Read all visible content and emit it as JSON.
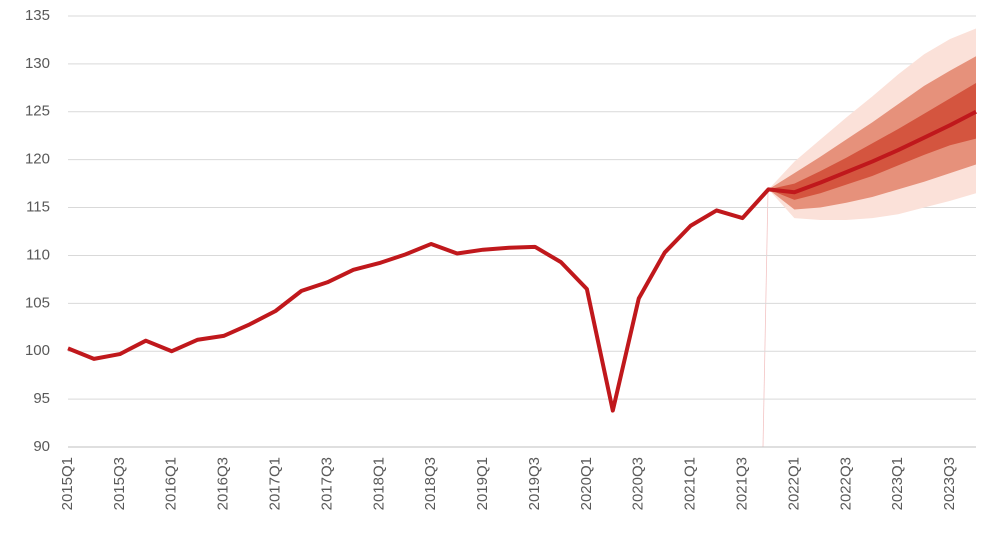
{
  "chart_data": {
    "type": "fan",
    "categories": [
      "2015Q1",
      null,
      "2015Q3",
      null,
      "2016Q1",
      null,
      "2016Q3",
      null,
      "2017Q1",
      null,
      "2017Q3",
      null,
      "2018Q1",
      null,
      "2018Q3",
      null,
      "2019Q1",
      null,
      "2019Q3",
      null,
      "2020Q1",
      null,
      "2020Q3",
      null,
      "2021Q1",
      null,
      "2021Q3",
      null,
      "2022Q1",
      null,
      "2022Q3",
      null,
      "2023Q1",
      null,
      "2023Q3",
      null
    ],
    "series": [
      {
        "color": "#c0181c",
        "values": [
          100.3,
          99.2,
          99.7,
          101.1,
          100.0,
          101.2,
          101.6,
          102.8,
          104.2,
          106.3,
          107.2,
          108.5,
          109.2,
          110.1,
          111.2,
          110.2,
          110.6,
          110.8,
          110.9,
          109.3,
          106.5,
          93.8,
          105.5,
          110.3,
          113.1,
          114.7,
          113.9,
          116.9,
          116.6,
          117.6,
          118.7,
          119.8,
          121.0,
          122.3,
          123.6,
          125.0
        ]
      }
    ],
    "fan": [
      {
        "color": "#fbe1d9",
        "lower": [
          null,
          null,
          null,
          null,
          null,
          null,
          null,
          null,
          null,
          null,
          null,
          null,
          null,
          null,
          null,
          null,
          null,
          null,
          null,
          null,
          null,
          null,
          null,
          null,
          null,
          null,
          null,
          116.9,
          113.9,
          113.7,
          113.7,
          113.9,
          114.3,
          115.0,
          115.7,
          116.5
        ],
        "upper": [
          null,
          null,
          null,
          null,
          null,
          null,
          null,
          null,
          null,
          null,
          null,
          null,
          null,
          null,
          null,
          null,
          null,
          null,
          null,
          null,
          null,
          null,
          null,
          null,
          null,
          null,
          null,
          116.9,
          119.8,
          122.1,
          124.4,
          126.6,
          128.9,
          131.0,
          132.6,
          133.7
        ]
      },
      {
        "color": "#e6917b",
        "lower": [
          null,
          null,
          null,
          null,
          null,
          null,
          null,
          null,
          null,
          null,
          null,
          null,
          null,
          null,
          null,
          null,
          null,
          null,
          null,
          null,
          null,
          null,
          null,
          null,
          null,
          null,
          null,
          116.9,
          114.8,
          115.0,
          115.5,
          116.1,
          116.9,
          117.7,
          118.6,
          119.5
        ],
        "upper": [
          null,
          null,
          null,
          null,
          null,
          null,
          null,
          null,
          null,
          null,
          null,
          null,
          null,
          null,
          null,
          null,
          null,
          null,
          null,
          null,
          null,
          null,
          null,
          null,
          null,
          null,
          null,
          116.9,
          118.6,
          120.3,
          122.1,
          123.9,
          125.8,
          127.7,
          129.3,
          130.8
        ]
      },
      {
        "color": "#d4553f",
        "lower": [
          null,
          null,
          null,
          null,
          null,
          null,
          null,
          null,
          null,
          null,
          null,
          null,
          null,
          null,
          null,
          null,
          null,
          null,
          null,
          null,
          null,
          null,
          null,
          null,
          null,
          null,
          null,
          116.9,
          115.8,
          116.5,
          117.4,
          118.3,
          119.4,
          120.5,
          121.5,
          122.2
        ],
        "upper": [
          null,
          null,
          null,
          null,
          null,
          null,
          null,
          null,
          null,
          null,
          null,
          null,
          null,
          null,
          null,
          null,
          null,
          null,
          null,
          null,
          null,
          null,
          null,
          null,
          null,
          null,
          null,
          116.9,
          117.5,
          118.8,
          120.2,
          121.7,
          123.2,
          124.8,
          126.4,
          128.0
        ]
      }
    ],
    "ylim": [
      90,
      135
    ],
    "yticks": [
      90,
      95,
      100,
      105,
      110,
      115,
      120,
      125,
      130,
      135
    ],
    "grid": true
  }
}
